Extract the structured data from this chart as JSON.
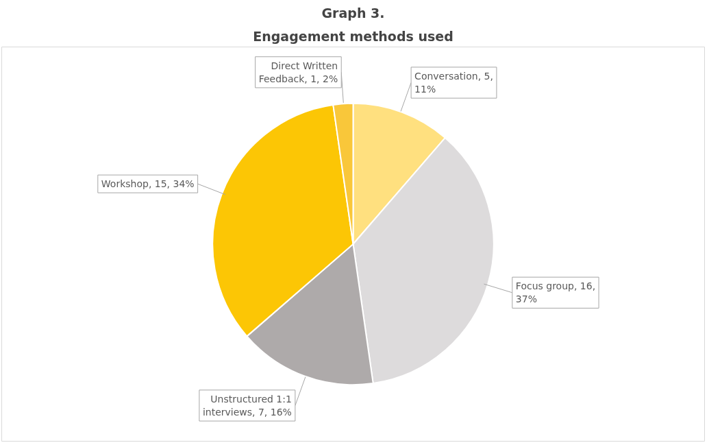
{
  "chart_data": {
    "type": "pie",
    "title": "Graph 3.",
    "subtitle": "Engagement methods used",
    "categories": [
      "Conversation",
      "Focus group",
      "Unstructured 1:1 interviews",
      "Workshop",
      "Direct Written Feedback"
    ],
    "values": [
      5,
      16,
      7,
      15,
      1
    ],
    "value_labels": [
      "5, 11%",
      "16, 37%",
      "7, 16%",
      "15, 34%",
      "1, 2%"
    ],
    "colors": [
      "#ffe07f",
      "#dddbdc",
      "#aeaaaa",
      "#fcc605",
      "#f9c73a"
    ]
  }
}
